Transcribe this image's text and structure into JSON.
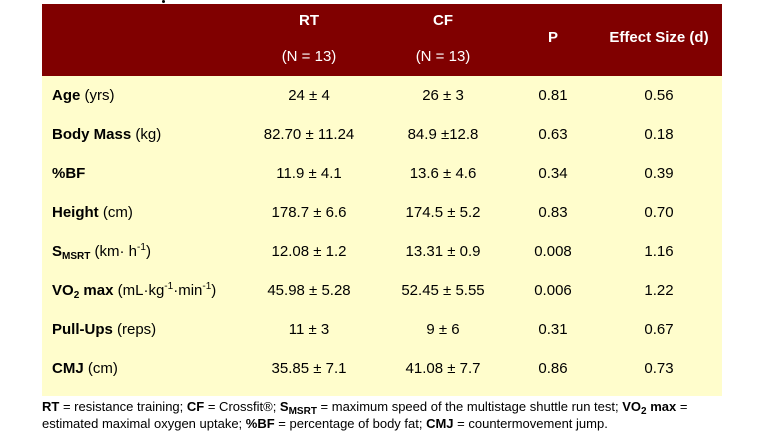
{
  "header": {
    "rt_title": "RT",
    "rt_n": "(N = 13)",
    "cf_title": "CF",
    "cf_n": "(N = 13)",
    "p_title": "P",
    "es_title": "Effect Size (d)"
  },
  "rows": [
    {
      "label_bold": "Age",
      "label_unit": " (yrs)",
      "rt": "24 ± 4",
      "cf": "26 ± 3",
      "p": "0.81",
      "es": "0.56"
    },
    {
      "label_bold": "Body Mass",
      "label_unit": " (kg)",
      "rt": "82.70 ± 11.24",
      "cf": "84.9 ±12.8",
      "p": "0.63",
      "es": "0.18"
    },
    {
      "label_bold": "%BF",
      "label_unit": "",
      "rt": "11.9 ± 4.1",
      "cf": "13.6 ± 4.6",
      "p": "0.34",
      "es": "0.39"
    },
    {
      "label_bold": "Height",
      "label_unit": " (cm)",
      "rt": "178.7 ± 6.6",
      "cf": "174.5 ± 5.2",
      "p": "0.83",
      "es": "0.70"
    },
    {
      "label_bold": "S",
      "label_sub": "MSRT",
      "label_unit": " (km· h",
      "label_sup": "-1",
      "label_tail": ")",
      "rt": "12.08 ± 1.2",
      "cf": "13.31 ± 0.9",
      "p": "0.008",
      "es": "1.16"
    },
    {
      "label_bold": "VO",
      "label_sub": "2",
      "label_bold2": " max",
      "label_unit": " (mL·kg",
      "label_sup": "-1",
      "label_mid": "·min",
      "label_sup2": "-1",
      "label_tail": ")",
      "rt": "45.98 ± 5.28",
      "cf": "52.45 ± 5.55",
      "p": "0.006",
      "es": "1.22"
    },
    {
      "label_bold": "Pull-Ups",
      "label_unit": " (reps)",
      "rt": "11 ± 3",
      "cf": "9 ± 6",
      "p": "0.31",
      "es": "0.67"
    },
    {
      "label_bold": "CMJ",
      "label_unit": " (cm)",
      "rt": "35.85 ± 7.1",
      "cf": "41.08 ± 7.7",
      "p": "0.86",
      "es": "0.73"
    }
  ],
  "footnote": {
    "rt_abbr": "RT",
    "rt_def": " = resistance training; ",
    "cf_abbr": "CF",
    "cf_def": " = Crossfit®; ",
    "s_abbr": "S",
    "s_sub": "MSRT",
    "s_def": " = maximum speed of the multistage shuttle run test; ",
    "vo_abbr": "VO",
    "vo_sub": "2",
    "vo_abbr2": " max",
    "vo_def": " = estimated maximal oxygen uptake; ",
    "bf_abbr": "%BF",
    "bf_def": " = percentage of body fat; ",
    "cmj_abbr": "CMJ",
    "cmj_def": " = countermovement jump."
  }
}
